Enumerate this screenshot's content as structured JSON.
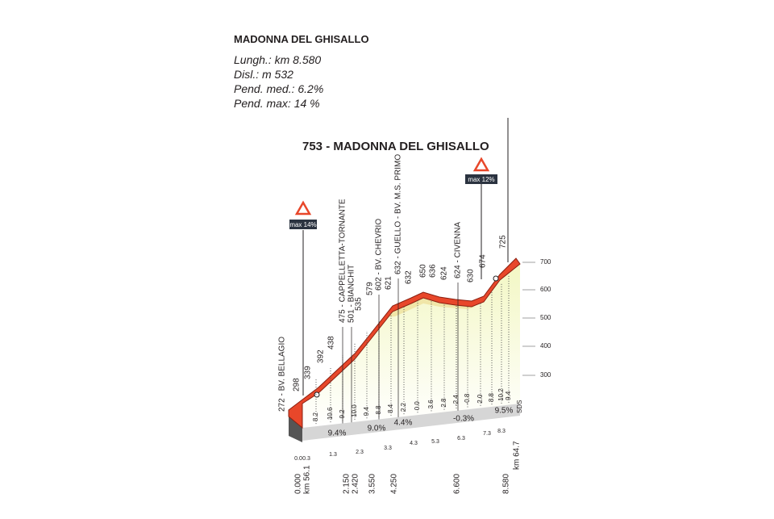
{
  "header": {
    "title": "MADONNA DEL GHISALLO",
    "stats": [
      "Lungh.: km 8.580",
      "Disl.: m 532",
      "Pend. med.: 6.2%",
      "Pend. max: 14 %"
    ]
  },
  "summit": "753 - MADONNA DEL GHISALLO",
  "max_signs": [
    "max 14%",
    "max 12%"
  ],
  "waypoints": [
    "272 - BV. BELLAGIO",
    "475 - CAPPELLETTA-TORNANTE",
    "501 - BIANCHIT",
    "602 - BV. CHEVRIO",
    "632 - GUELLO - BV. M.S. PRIMO",
    "624 - CIVENNA"
  ],
  "altitudes": [
    "298",
    "339",
    "392",
    "438",
    "535",
    "579",
    "621",
    "632",
    "650",
    "636",
    "624",
    "630",
    "674",
    "725"
  ],
  "altitude_ticks": [
    "700",
    "600",
    "500",
    "400",
    "300"
  ],
  "km_gradients": [
    "8.2",
    "10.6",
    "9.2",
    "10.0",
    "9.4",
    "8.8",
    "8.4",
    "2.2",
    "0.0",
    "3.6",
    "2.8",
    "-2.4",
    "-0.8",
    "2.0",
    "8.8",
    "10.2",
    "9.4"
  ],
  "segment_gradients": [
    "9.4%",
    "9.0%",
    "4.4%",
    "-0.3%",
    "9.5%"
  ],
  "km_marks": [
    "0.0",
    "0.3",
    "1.3",
    "2.3",
    "3.3",
    "4.3",
    "5.3",
    "6.3",
    "7.3",
    "8.3"
  ],
  "distances": [
    "0.000",
    "2.150",
    "2.420",
    "3.550",
    "4.250",
    "6.600",
    "8.580"
  ],
  "km_labels": [
    "km 56.1",
    "km 64.7"
  ],
  "road": "SDS"
}
